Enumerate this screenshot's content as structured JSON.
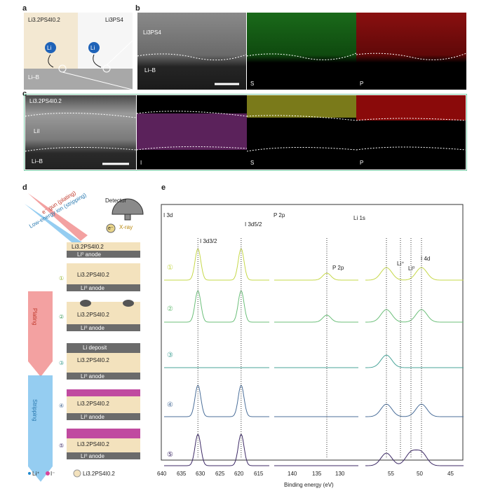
{
  "panels": {
    "a": {
      "letter": "a",
      "left_label": "Li3.2PS4I0.2",
      "right_label": "Li3PS4",
      "bottom_label": "Li–B",
      "ion_symbol": "Li"
    },
    "b": {
      "letter": "b",
      "top_label": "Li3PS4",
      "bottom_label": "Li–B",
      "maps": [
        "S",
        "P"
      ]
    },
    "c": {
      "letter": "c",
      "top_label": "Li3.2PS4I0.2",
      "mid_label": "LiI",
      "bottom_label": "Li–B",
      "maps": [
        "I",
        "S",
        "P"
      ]
    },
    "d": {
      "letter": "d",
      "detector": "Detector",
      "egun": "e⁻ gun (plating)",
      "ion": "Low-energy ion (stripping)",
      "xray": "X-ray",
      "electron": "e⁻",
      "layer_top": "Li3.2PS4I0.2",
      "anode": "Li⁰ anode",
      "li_deposit": "Li deposit",
      "plating": "Plating",
      "stripping": "Stripping",
      "steps": [
        "①",
        "②",
        "③",
        "④",
        "⑤"
      ],
      "legend": [
        "Li⁺",
        "I⁻",
        "Li3.2PS4I0.2"
      ]
    },
    "e": {
      "letter": "e",
      "sections": [
        "I 3d",
        "P 2p",
        "Li 1s"
      ],
      "peak_labels": [
        "I 3d3/2",
        "I 3d5/2",
        "P 2p",
        "Li⁺",
        "Li⁰",
        "I 4d"
      ],
      "steps": [
        "①",
        "②",
        "③",
        "④",
        "⑤"
      ],
      "xlabel": "Binding energy (eV)",
      "ticks_i3d": [
        "640",
        "635",
        "630",
        "625",
        "620",
        "615"
      ],
      "ticks_p2p": [
        "140",
        "135",
        "130"
      ],
      "ticks_li1s": [
        "55",
        "50",
        "45"
      ],
      "colors": [
        "#c6d84a",
        "#6cbf7a",
        "#4aa59a",
        "#4b6f9a",
        "#3d2a66"
      ]
    }
  },
  "chart_data": {
    "type": "line",
    "title": "",
    "xlabel": "Binding energy (eV)",
    "ylabel": "",
    "series": [
      {
        "name": "①",
        "peaks_eV": [
          631,
          619.5,
          132,
          54,
          49
        ]
      },
      {
        "name": "②",
        "peaks_eV": [
          631,
          619.5,
          132,
          54,
          49
        ]
      },
      {
        "name": "③",
        "peaks_eV": [
          54
        ]
      },
      {
        "name": "④",
        "peaks_eV": [
          631,
          619.5,
          54,
          49
        ]
      },
      {
        "name": "⑤",
        "peaks_eV": [
          631,
          619.5,
          54,
          50.5,
          49
        ]
      }
    ]
  }
}
